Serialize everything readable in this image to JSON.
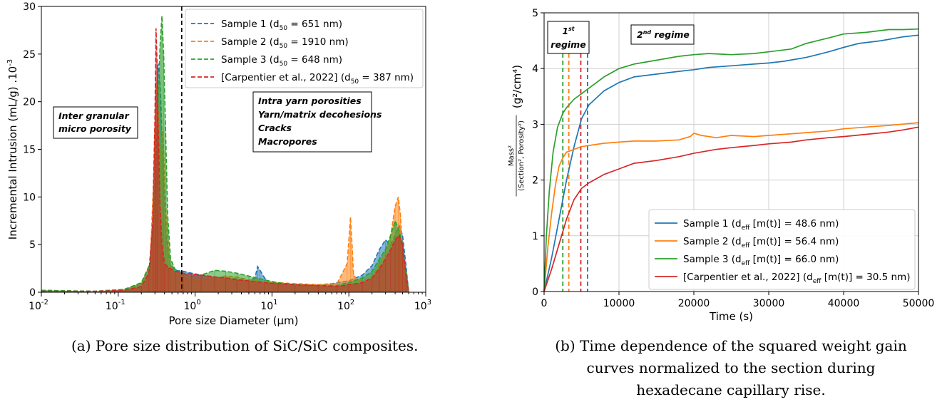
{
  "chart_data": [
    {
      "type": "area",
      "panel": "(a)",
      "caption": "(a) Pore size distribution of SiC/SiC composites.",
      "xlabel": "Pore size Diameter (µm)",
      "ylabel": "Incremental Intrusion (mL/g) .10",
      "ylabel_exponent": "-3",
      "xscale": "log",
      "xlim": [
        0.01,
        1000
      ],
      "ylim": [
        0,
        30
      ],
      "xticks": [
        {
          "value": 0.01,
          "base": "10",
          "exp": "-2"
        },
        {
          "value": 0.1,
          "base": "10",
          "exp": "-1"
        },
        {
          "value": 1,
          "base": "10",
          "exp": "0"
        },
        {
          "value": 10,
          "base": "10",
          "exp": "1"
        },
        {
          "value": 100,
          "base": "10",
          "exp": "2"
        },
        {
          "value": 1000,
          "base": "10",
          "exp": "3"
        }
      ],
      "yticks": [
        "0",
        "5",
        "10",
        "15",
        "20",
        "25",
        "30"
      ],
      "threshold_line_x": 0.67,
      "legend_position": "top-right",
      "annotations": [
        {
          "lines": [
            "Inter granular",
            "micro porosity"
          ]
        },
        {
          "lines": [
            "Intra yarn porosities",
            "Yarn/matrix decohesions",
            "Cracks",
            "Macropores"
          ]
        }
      ],
      "series": [
        {
          "name": "Sample 1",
          "d_label": "50",
          "d_value": "651 nm",
          "color": "#1f77b4",
          "x": [
            0.01,
            0.05,
            0.12,
            0.2,
            0.26,
            0.29,
            0.31,
            0.33,
            0.35,
            0.38,
            0.42,
            0.47,
            0.55,
            0.7,
            0.9,
            1.2,
            1.8,
            2.5,
            3.5,
            5,
            6,
            6.5,
            7,
            8,
            9,
            12,
            18,
            30,
            60,
            100,
            150,
            200,
            250,
            300,
            350,
            400,
            450,
            500,
            550,
            600
          ],
          "y": [
            0.2,
            0.1,
            0.3,
            1,
            3,
            10,
            19,
            24,
            22,
            14,
            6,
            3,
            2.3,
            2.2,
            2,
            1.8,
            1.6,
            1.5,
            1.4,
            1.2,
            1.5,
            2.7,
            2.3,
            1.5,
            1,
            0.9,
            0.8,
            0.7,
            0.9,
            1.2,
            1.8,
            2.8,
            4.5,
            5.5,
            5,
            6,
            7,
            6,
            3,
            0
          ]
        },
        {
          "name": "Sample 2",
          "d_label": "50",
          "d_value": "1910 nm",
          "color": "#ff7f0e",
          "x": [
            0.01,
            0.05,
            0.12,
            0.2,
            0.26,
            0.29,
            0.31,
            0.33,
            0.35,
            0.38,
            0.42,
            0.47,
            0.55,
            0.7,
            0.9,
            1.2,
            1.8,
            2.5,
            3.5,
            5,
            8,
            12,
            20,
            40,
            70,
            95,
            105,
            110,
            115,
            125,
            150,
            200,
            250,
            300,
            350,
            400,
            440,
            470,
            500,
            550,
            600
          ],
          "y": [
            0.2,
            0.1,
            0.3,
            0.8,
            3,
            12,
            22,
            20,
            14,
            17,
            8,
            3,
            2,
            1.6,
            1.3,
            1.2,
            1.5,
            1.7,
            1.6,
            1.3,
            1.1,
            1,
            0.9,
            0.8,
            0.9,
            3,
            7.9,
            5,
            2,
            1.3,
            1.2,
            1.6,
            3,
            4,
            6,
            9,
            10,
            8,
            4,
            1,
            0
          ]
        },
        {
          "name": "Sample 3",
          "d_label": "50",
          "d_value": "648 nm",
          "color": "#2ca02c",
          "x": [
            0.01,
            0.05,
            0.12,
            0.2,
            0.26,
            0.29,
            0.31,
            0.33,
            0.35,
            0.37,
            0.39,
            0.41,
            0.44,
            0.48,
            0.55,
            0.7,
            0.9,
            1.2,
            1.8,
            2.5,
            3.5,
            5,
            8,
            12,
            20,
            40,
            70,
            100,
            150,
            200,
            250,
            300,
            350,
            400,
            450,
            500,
            550,
            600
          ],
          "y": [
            0.2,
            0.1,
            0.3,
            1,
            3,
            8,
            14,
            20,
            26,
            29,
            25,
            18,
            8,
            3.5,
            2.4,
            1.9,
            1.7,
            1.8,
            2.3,
            2.2,
            2,
            1.7,
            1.3,
            1,
            0.8,
            0.7,
            0.7,
            1,
            1.5,
            2.2,
            3.5,
            4.5,
            6,
            7.5,
            6.5,
            5,
            2.5,
            0
          ]
        },
        {
          "name": "[Carpentier et al., 2022]",
          "d_label": "50",
          "d_value": "387 nm",
          "color": "#d62728",
          "x": [
            0.01,
            0.05,
            0.12,
            0.2,
            0.25,
            0.28,
            0.3,
            0.31,
            0.32,
            0.33,
            0.35,
            0.37,
            0.4,
            0.45,
            0.55,
            0.7,
            0.9,
            1.2,
            1.8,
            2.5,
            3.5,
            5,
            8,
            12,
            20,
            40,
            70,
            100,
            150,
            200,
            250,
            300,
            350,
            400,
            450,
            500,
            550,
            600
          ],
          "y": [
            0.1,
            0.1,
            0.2,
            0.6,
            2,
            7,
            18,
            27.7,
            24,
            18,
            9,
            5,
            3,
            2.6,
            2.2,
            2,
            1.9,
            1.8,
            1.6,
            1.5,
            1.3,
            1.2,
            1,
            0.9,
            0.8,
            0.7,
            0.6,
            0.8,
            1,
            1.5,
            2.5,
            3.5,
            4.5,
            5.5,
            6,
            5,
            2,
            0
          ]
        }
      ]
    },
    {
      "type": "line",
      "panel": "(b)",
      "caption": [
        "(b) Time dependence of the squared weight gain",
        "curves normalized to the section during",
        "hexadecane capillary rise."
      ],
      "xlabel": "Time (s)",
      "ylabel_fraction_num": "Mass²",
      "ylabel_fraction_den": "(Section², Porosity²)",
      "ylabel_unit": "(g²/cm⁴)",
      "xlim": [
        0,
        50000
      ],
      "ylim": [
        0,
        5
      ],
      "xticks": [
        "0",
        "10000",
        "20000",
        "30000",
        "40000",
        "50000"
      ],
      "yticks": [
        "0",
        "1",
        "2",
        "3",
        "4",
        "5"
      ],
      "grid": true,
      "legend_position": "bottom-right",
      "annotations": [
        {
          "lines": [
            "1st",
            "regime"
          ],
          "sup": "st"
        },
        {
          "lines": [
            "2nd regime"
          ],
          "sup": "nd"
        }
      ],
      "vlines": [
        {
          "x": 2500,
          "color": "#2ca02c"
        },
        {
          "x": 3300,
          "color": "#ff7f0e"
        },
        {
          "x": 4900,
          "color": "#d62728"
        },
        {
          "x": 5800,
          "color": "#1f77b4"
        }
      ],
      "series": [
        {
          "name": "Sample 1",
          "d_value": "48.6 nm",
          "color": "#1f77b4",
          "x": [
            0,
            1000,
            2000,
            3000,
            4000,
            5000,
            6000,
            8000,
            10000,
            12000,
            15000,
            18000,
            20000,
            22000,
            25000,
            28000,
            30000,
            32000,
            35000,
            38000,
            40000,
            42000,
            45000,
            48000,
            50000
          ],
          "y": [
            0,
            0.6,
            1.3,
            2.0,
            2.6,
            3.1,
            3.35,
            3.6,
            3.75,
            3.85,
            3.9,
            3.95,
            3.98,
            4.02,
            4.05,
            4.08,
            4.1,
            4.13,
            4.2,
            4.3,
            4.38,
            4.45,
            4.5,
            4.57,
            4.6
          ]
        },
        {
          "name": "Sample 2",
          "d_value": "56.4 nm",
          "color": "#ff7f0e",
          "x": [
            0,
            500,
            1000,
            1500,
            2000,
            2500,
            3000,
            4000,
            5000,
            6000,
            8000,
            10000,
            12000,
            15000,
            18000,
            19500,
            20000,
            21000,
            23000,
            25000,
            28000,
            30000,
            32000,
            35000,
            38000,
            40000,
            43000,
            46000,
            50000
          ],
          "y": [
            0,
            0.8,
            1.4,
            1.9,
            2.25,
            2.4,
            2.5,
            2.55,
            2.6,
            2.62,
            2.66,
            2.68,
            2.7,
            2.7,
            2.72,
            2.78,
            2.84,
            2.8,
            2.76,
            2.8,
            2.78,
            2.8,
            2.82,
            2.85,
            2.88,
            2.92,
            2.95,
            2.98,
            3.03
          ]
        },
        {
          "name": "Sample 3",
          "d_value": "66.0 nm",
          "color": "#2ca02c",
          "x": [
            0,
            300,
            700,
            1200,
            1800,
            2500,
            3000,
            4000,
            5000,
            6000,
            7000,
            8000,
            10000,
            12000,
            15000,
            18000,
            20000,
            22000,
            25000,
            28000,
            30000,
            33000,
            35000,
            38000,
            40000,
            43000,
            46000,
            48000,
            50000
          ],
          "y": [
            0,
            1.0,
            1.8,
            2.5,
            2.95,
            3.2,
            3.3,
            3.45,
            3.55,
            3.65,
            3.75,
            3.85,
            4.0,
            4.08,
            4.15,
            4.22,
            4.25,
            4.27,
            4.25,
            4.27,
            4.3,
            4.35,
            4.45,
            4.55,
            4.62,
            4.65,
            4.7,
            4.7,
            4.71
          ]
        },
        {
          "name": "[Carpentier et al., 2022]",
          "d_value": "30.5 nm",
          "color": "#d62728",
          "x": [
            0,
            1000,
            2000,
            3000,
            4000,
            5000,
            6000,
            8000,
            10000,
            12000,
            15000,
            18000,
            20000,
            23000,
            25000,
            28000,
            30000,
            33000,
            35000,
            38000,
            40000,
            43000,
            46000,
            48000,
            50000
          ],
          "y": [
            0,
            0.4,
            0.85,
            1.3,
            1.65,
            1.85,
            1.95,
            2.1,
            2.2,
            2.3,
            2.35,
            2.42,
            2.48,
            2.55,
            2.58,
            2.62,
            2.65,
            2.68,
            2.72,
            2.76,
            2.78,
            2.82,
            2.86,
            2.9,
            2.95
          ]
        }
      ]
    }
  ]
}
